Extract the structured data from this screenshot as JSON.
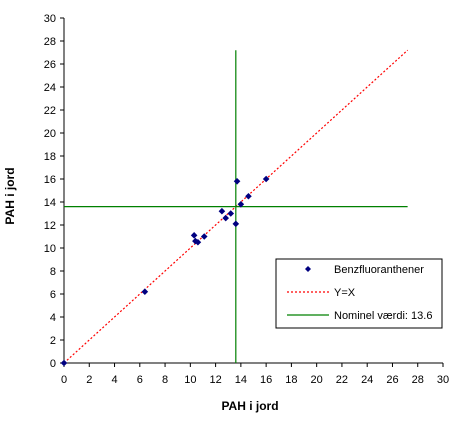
{
  "chart_data": {
    "type": "scatter",
    "xlabel": "PAH i jord",
    "ylabel": "PAH i jord",
    "xlim": [
      0,
      30
    ],
    "ylim": [
      0,
      30
    ],
    "xticks": [
      "0",
      "2",
      "4",
      "6",
      "8",
      "10",
      "12",
      "14",
      "16",
      "18",
      "20",
      "22",
      "24",
      "26",
      "28",
      "30"
    ],
    "yticks": [
      "0",
      "2",
      "4",
      "6",
      "8",
      "10",
      "12",
      "14",
      "16",
      "18",
      "20",
      "22",
      "24",
      "26",
      "28",
      "30"
    ],
    "grid": false,
    "legend_position": "right",
    "series": [
      {
        "name": "Benzfluoranthener",
        "marker": "diamond",
        "color": "#000080",
        "points": [
          {
            "x": 0,
            "y": 0
          },
          {
            "x": 6.4,
            "y": 6.2
          },
          {
            "x": 10.3,
            "y": 11.1
          },
          {
            "x": 10.4,
            "y": 10.6
          },
          {
            "x": 10.6,
            "y": 10.5
          },
          {
            "x": 11.1,
            "y": 11.0
          },
          {
            "x": 12.5,
            "y": 13.2
          },
          {
            "x": 12.8,
            "y": 12.6
          },
          {
            "x": 13.2,
            "y": 13.0
          },
          {
            "x": 13.6,
            "y": 12.1
          },
          {
            "x": 13.7,
            "y": 15.8
          },
          {
            "x": 14.0,
            "y": 13.8
          },
          {
            "x": 14.6,
            "y": 14.5
          },
          {
            "x": 16.0,
            "y": 16.0
          }
        ]
      },
      {
        "name": "Y=X",
        "style": "dotted",
        "color": "#ff0000",
        "points": [
          {
            "x": 0,
            "y": 0
          },
          {
            "x": 27.2,
            "y": 27.2
          }
        ]
      },
      {
        "name": "Nominel værdi:  13.6",
        "style": "solid",
        "color": "#008000",
        "value": 13.6,
        "vertical_y_range": [
          0,
          27.2
        ],
        "horizontal_x_range": [
          0,
          27.2
        ]
      }
    ]
  }
}
